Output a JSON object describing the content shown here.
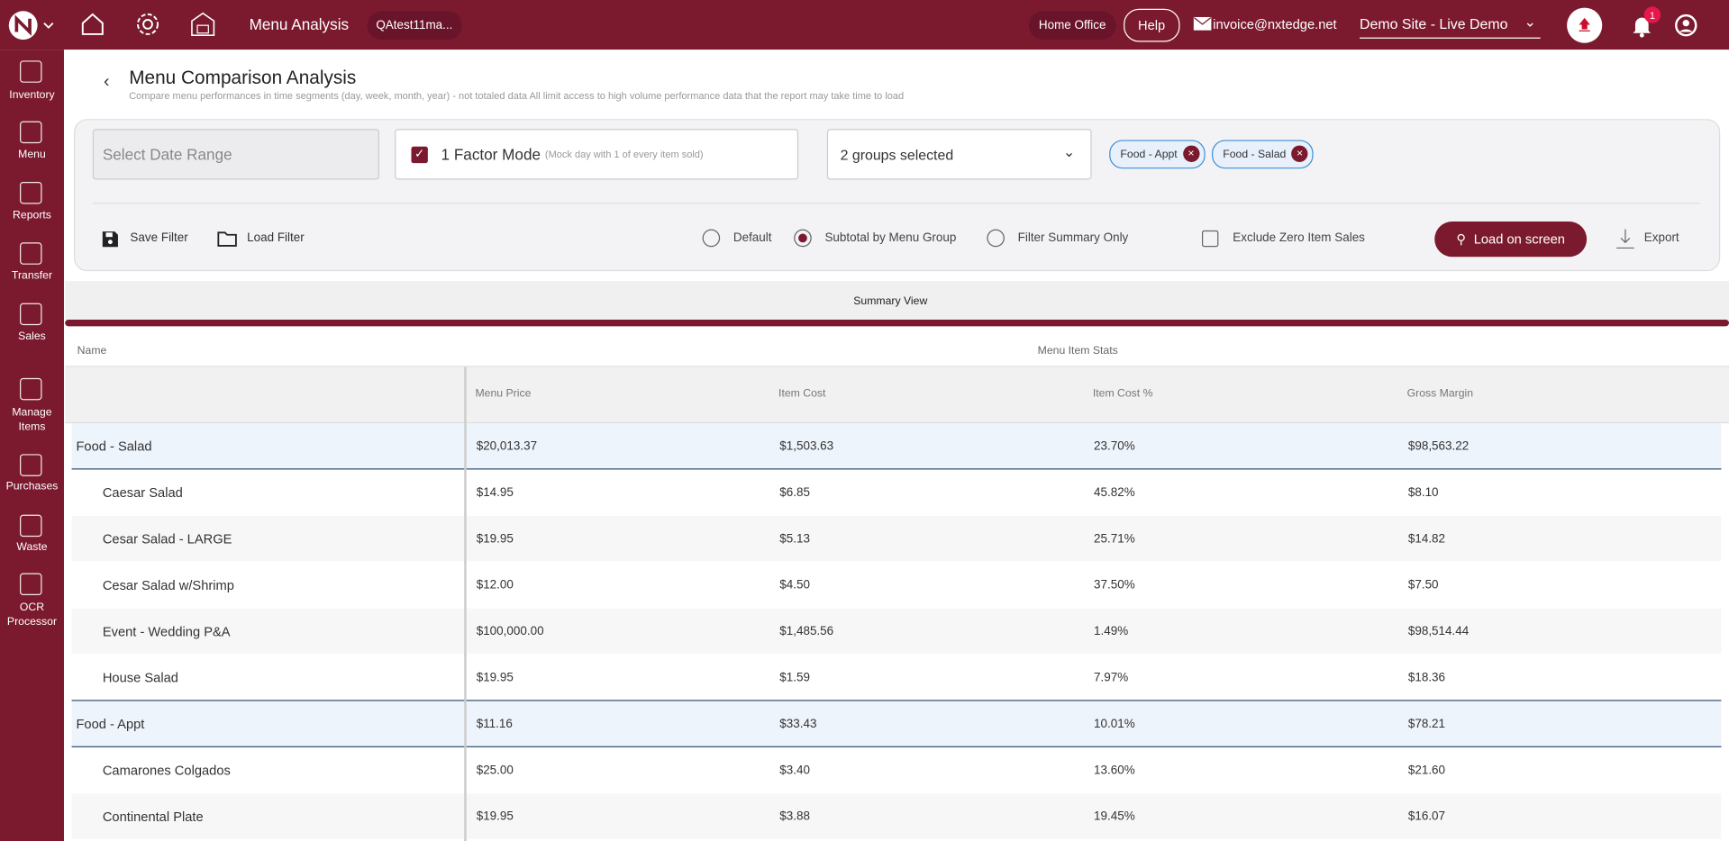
{
  "topbar": {
    "app_title": "Menu Analysis",
    "tab": "QAtest11ma...",
    "home_office": "Home Office",
    "help": "Help",
    "email": "invoice@nxtedge.net",
    "site": "Demo Site - Live Demo",
    "badge": "1"
  },
  "sidebar": {
    "items": [
      "Inventory",
      "Menu",
      "Reports",
      "Transfer",
      "Sales",
      "Manage Items",
      "Purchases",
      "Waste",
      "OCR Processor"
    ]
  },
  "header": {
    "title": "Menu Comparison Analysis",
    "subtitle": "Compare menu performances in time segments (day, week, month, year) - not totaled data All limit access to high volume performance data that the report may take time to load"
  },
  "filters": {
    "date_placeholder": "Select Date Range",
    "factor_mode": "1 Factor Mode",
    "factor_note": "(Mock day with 1 of every item sold)",
    "groups_select": "2 groups selected",
    "chips": [
      "Food - Appt",
      "Food - Salad"
    ],
    "save_filter": "Save Filter",
    "load_filter": "Load Filter",
    "radios": [
      "Default",
      "Subtotal by Menu Group",
      "Filter Summary Only"
    ],
    "exclude_zero": "Exclude Zero Item Sales",
    "load_button": "Load on screen",
    "export": "Export"
  },
  "tab": "Summary View",
  "table": {
    "name_header": "Name",
    "stats_header": "Menu Item Stats",
    "columns": [
      "Menu Price",
      "Item Cost",
      "Item Cost %",
      "Gross Margin"
    ],
    "groups": [
      {
        "name": "Food - Salad",
        "cells": [
          "$20,013.37",
          "$1,503.63",
          "23.70%",
          "$98,563.22"
        ],
        "items": [
          {
            "name": "Caesar Salad",
            "cells": [
              "$14.95",
              "$6.85",
              "45.82%",
              "$8.10"
            ]
          },
          {
            "name": "Cesar Salad - LARGE",
            "cells": [
              "$19.95",
              "$5.13",
              "25.71%",
              "$14.82"
            ]
          },
          {
            "name": "Cesar Salad w/Shrimp",
            "cells": [
              "$12.00",
              "$4.50",
              "37.50%",
              "$7.50"
            ]
          },
          {
            "name": "Event - Wedding P&A",
            "cells": [
              "$100,000.00",
              "$1,485.56",
              "1.49%",
              "$98,514.44"
            ]
          },
          {
            "name": "House Salad",
            "cells": [
              "$19.95",
              "$1.59",
              "7.97%",
              "$18.36"
            ]
          }
        ]
      },
      {
        "name": "Food - Appt",
        "cells": [
          "$11.16",
          "$33.43",
          "10.01%",
          "$78.21"
        ],
        "items": [
          {
            "name": "Camarones Colgados",
            "cells": [
              "$25.00",
              "$3.40",
              "13.60%",
              "$21.60"
            ]
          },
          {
            "name": "Continental Plate",
            "cells": [
              "$19.95",
              "$3.88",
              "19.45%",
              "$16.07"
            ]
          }
        ]
      }
    ]
  }
}
